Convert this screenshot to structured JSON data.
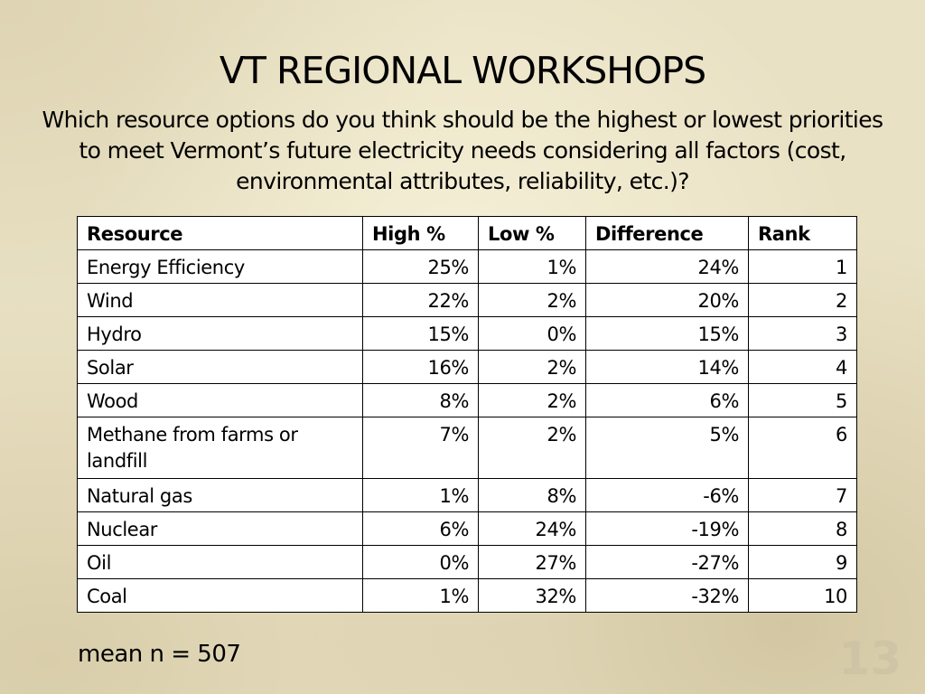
{
  "slide": {
    "title": "VT REGIONAL WORKSHOPS",
    "question": "Which resource options do you think should be the highest or lowest priorities to meet Vermont’s future electricity needs considering all factors (cost, environmental attributes, reliability, etc.)?",
    "mean_note": "mean n = 507",
    "page_number": "13"
  },
  "table": {
    "headers": [
      "Resource",
      "High %",
      "Low %",
      "Difference",
      "Rank"
    ],
    "rows": [
      {
        "resource": "Energy Efficiency",
        "high": "25%",
        "low": "1%",
        "difference": "24%",
        "rank": "1"
      },
      {
        "resource": "Wind",
        "high": "22%",
        "low": "2%",
        "difference": "20%",
        "rank": "2"
      },
      {
        "resource": "Hydro",
        "high": "15%",
        "low": "0%",
        "difference": "15%",
        "rank": "3"
      },
      {
        "resource": "Solar",
        "high": "16%",
        "low": "2%",
        "difference": "14%",
        "rank": "4"
      },
      {
        "resource": "Wood",
        "high": "8%",
        "low": "2%",
        "difference": "6%",
        "rank": "5"
      },
      {
        "resource": "Methane from farms or landfill",
        "high": "7%",
        "low": "2%",
        "difference": "5%",
        "rank": "6"
      },
      {
        "resource": "Natural gas",
        "high": "1%",
        "low": "8%",
        "difference": "-6%",
        "rank": "7"
      },
      {
        "resource": "Nuclear",
        "high": "6%",
        "low": "24%",
        "difference": "-19%",
        "rank": "8"
      },
      {
        "resource": "Oil",
        "high": "0%",
        "low": "27%",
        "difference": "-27%",
        "rank": "9"
      },
      {
        "resource": "Coal",
        "high": "1%",
        "low": "32%",
        "difference": "-32%",
        "rank": "10"
      }
    ]
  },
  "colors": {
    "background": "#e9e1c4",
    "table_background": "#ffffff",
    "text": "#000000"
  }
}
